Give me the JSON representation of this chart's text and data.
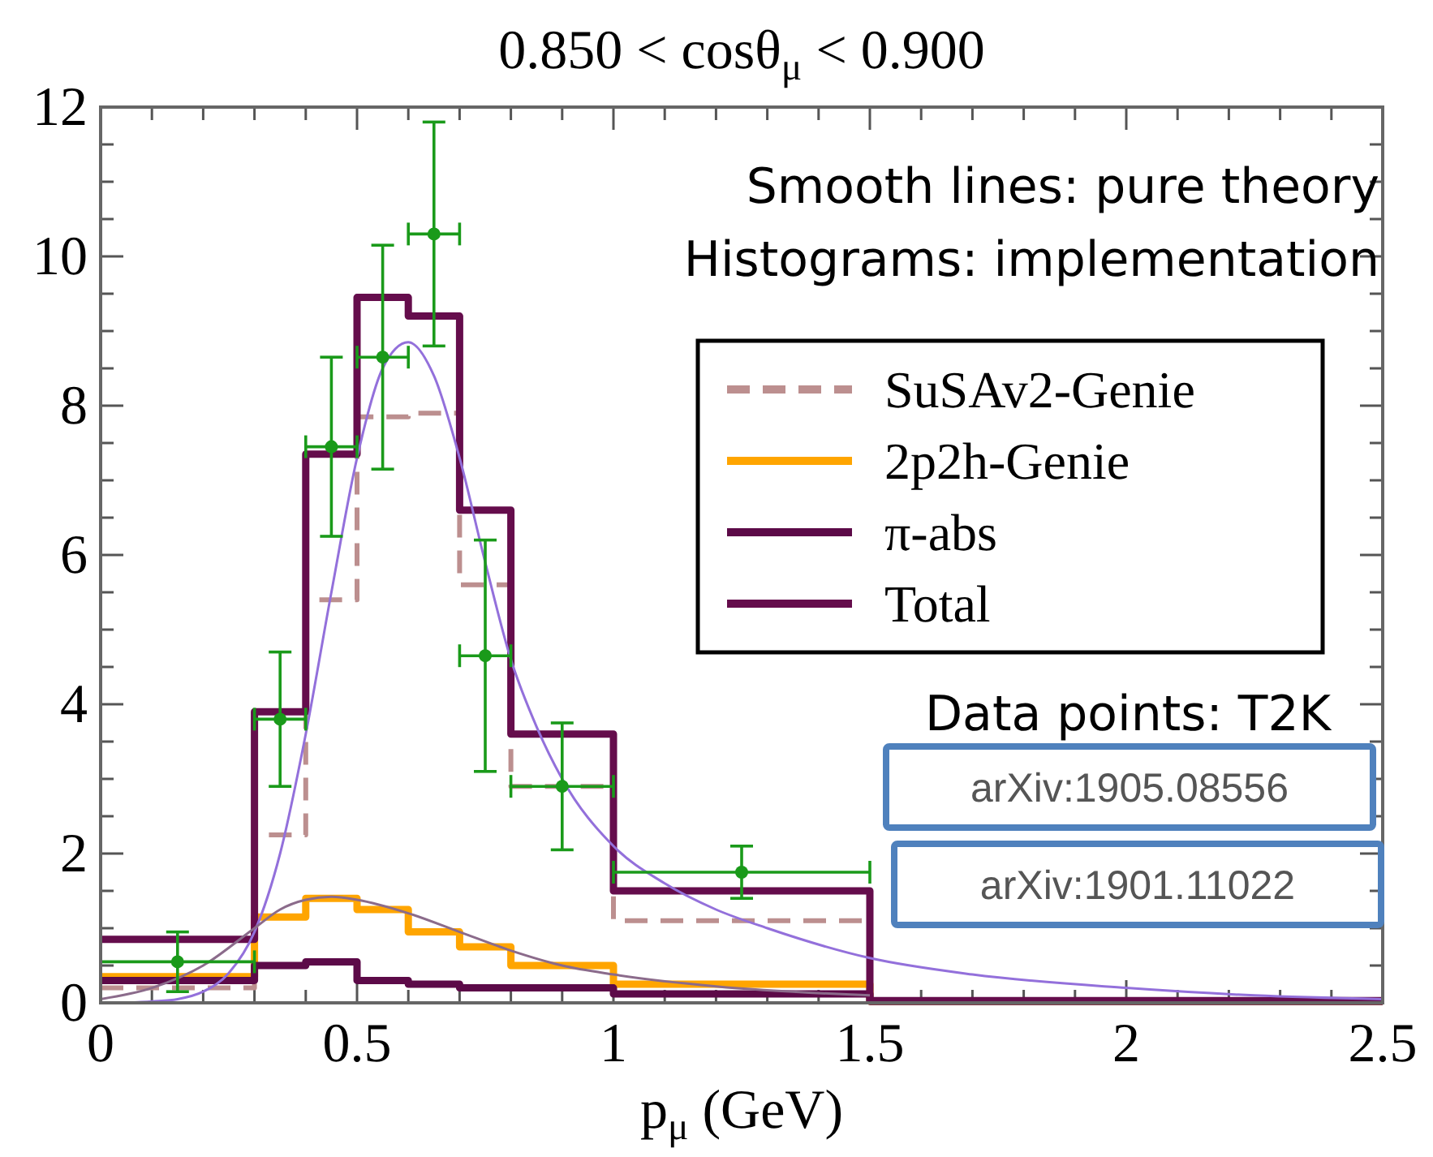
{
  "chart_data": {
    "type": "histogram",
    "title": "0.850 < cosθ$_{μ}$ < 0.900",
    "xlabel": "p$_{μ}$ (GeV)",
    "bins": [
      0,
      0.3,
      0.4,
      0.5,
      0.6,
      0.7,
      0.8,
      1.0,
      1.5,
      2.5
    ],
    "series": [
      {
        "name": "SuSAv2-Genie",
        "color": "#bc8f8f",
        "line_style": "dashed",
        "values": [
          0.2,
          2.25,
          5.4,
          7.85,
          7.9,
          5.6,
          2.9,
          1.1,
          0.02
        ]
      },
      {
        "name": "2p2h-Genie",
        "color": "#ffa500",
        "values": [
          0.35,
          1.15,
          1.4,
          1.25,
          0.95,
          0.75,
          0.5,
          0.25,
          0.02
        ]
      },
      {
        "name": "π-abs",
        "color": "#5c0a48",
        "values": [
          0.3,
          0.5,
          0.55,
          0.3,
          0.25,
          0.2,
          0.2,
          0.12,
          0.02
        ]
      },
      {
        "name": "Total",
        "color": "#650d4c",
        "values": [
          0.85,
          3.9,
          7.35,
          9.45,
          9.2,
          6.6,
          3.6,
          1.5,
          0.03
        ]
      },
      {
        "type": "line",
        "color": "#9370db",
        "x": [
          0.05,
          0.1,
          0.15,
          0.2,
          0.25,
          0.3,
          0.35,
          0.4,
          0.45,
          0.5,
          0.55,
          0.6,
          0.65,
          0.7,
          0.75,
          0.8,
          0.85,
          0.9,
          1.0,
          1.1,
          1.2,
          1.3,
          1.5,
          1.7,
          2.0,
          2.25,
          2.5
        ],
        "values": [
          0.0,
          0.02,
          0.05,
          0.15,
          0.4,
          0.95,
          2.0,
          3.6,
          5.5,
          7.3,
          8.5,
          8.85,
          8.4,
          7.3,
          5.9,
          4.6,
          3.7,
          3.0,
          2.1,
          1.6,
          1.25,
          1.0,
          0.6,
          0.38,
          0.2,
          0.1,
          0.05
        ]
      },
      {
        "type": "line",
        "color": "#8b6b8b",
        "x": [
          0,
          0.1,
          0.2,
          0.3,
          0.35,
          0.4,
          0.45,
          0.5,
          0.6,
          0.7,
          0.8,
          0.9,
          1.0,
          1.2,
          1.5
        ],
        "values": [
          0.05,
          0.2,
          0.5,
          1.0,
          1.25,
          1.38,
          1.42,
          1.38,
          1.2,
          0.95,
          0.7,
          0.5,
          0.38,
          0.22,
          0.1
        ]
      },
      {
        "type": "scatter",
        "color": "#1a9a1a",
        "marker": "circle",
        "x": [
          0.15,
          0.35,
          0.45,
          0.55,
          0.65,
          0.75,
          0.9,
          1.25
        ],
        "values": [
          0.55,
          3.8,
          7.45,
          8.65,
          10.3,
          4.65,
          2.9,
          1.75
        ],
        "errors": [
          0.4,
          0.9,
          1.2,
          1.5,
          1.5,
          1.55,
          0.85,
          0.35
        ],
        "xerrors": [
          0.15,
          0.05,
          0.05,
          0.05,
          0.05,
          0.05,
          0.1,
          0.25
        ]
      }
    ],
    "xlim": [
      0,
      2.5
    ],
    "ylim": [
      0,
      12
    ],
    "xticks": [
      0,
      {
        "value": 0.1,
        "label": null
      },
      {
        "value": 0.2,
        "label": null
      },
      {
        "value": 0.3,
        "label": null
      },
      {
        "value": 0.4,
        "label": null
      },
      0.5,
      {
        "value": 0.6,
        "label": null
      },
      {
        "value": 0.7,
        "label": null
      },
      {
        "value": 0.8,
        "label": null
      },
      {
        "value": 0.9,
        "label": null
      },
      1,
      {
        "value": 1.1,
        "label": null
      },
      {
        "value": 1.2,
        "label": null
      },
      {
        "value": 1.3,
        "label": null
      },
      {
        "value": 1.4,
        "label": null
      },
      1.5,
      {
        "value": 1.6,
        "label": null
      },
      {
        "value": 1.7,
        "label": null
      },
      {
        "value": 1.8,
        "label": null
      },
      {
        "value": 1.9,
        "label": null
      },
      2,
      {
        "value": 2.1,
        "label": null
      },
      {
        "value": 2.2,
        "label": null
      },
      {
        "value": 2.3,
        "label": null
      },
      {
        "value": 2.4,
        "label": null
      },
      2.5
    ],
    "yticks": [
      0,
      {
        "value": 0.5,
        "label": null
      },
      {
        "value": 1,
        "label": null
      },
      {
        "value": 1.5,
        "label": null
      },
      2,
      {
        "value": 2.5,
        "label": null
      },
      {
        "value": 3,
        "label": null
      },
      {
        "value": 3.5,
        "label": null
      },
      4,
      {
        "value": 4.5,
        "label": null
      },
      {
        "value": 5,
        "label": null
      },
      {
        "value": 5.5,
        "label": null
      },
      6,
      {
        "value": 6.5,
        "label": null
      },
      {
        "value": 7,
        "label": null
      },
      {
        "value": 7.5,
        "label": null
      },
      8,
      {
        "value": 8.5,
        "label": null
      },
      {
        "value": 9,
        "label": null
      },
      {
        "value": 9.5,
        "label": null
      },
      10,
      {
        "value": 10.5,
        "label": null
      },
      {
        "value": 11,
        "label": null
      },
      {
        "value": 11.5,
        "label": null
      },
      12
    ],
    "legend": "top right",
    "annotations": [
      "Smooth lines: pure theory",
      "Histograms: implementation",
      "Data points: T2K",
      "arXiv:1905.08556",
      "arXiv:1901.11022"
    ]
  }
}
